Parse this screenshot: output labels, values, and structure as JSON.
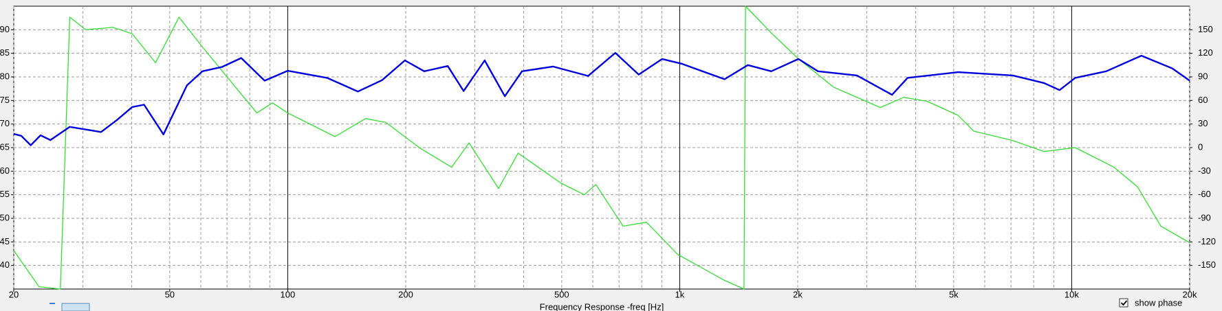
{
  "chart_data": {
    "type": "line",
    "x_label": "Frequency Response -freq [Hz]",
    "x_scale": "log",
    "xlim": [
      20,
      20000
    ],
    "xticks": [
      20,
      50,
      100,
      200,
      500,
      {
        "value": 1000,
        "label": "1k"
      },
      {
        "value": 2000,
        "label": "2k"
      },
      {
        "value": 5000,
        "label": "5k"
      },
      {
        "value": 10000,
        "label": "10k"
      },
      {
        "value": 20000,
        "label": "20k"
      }
    ],
    "x_minor_grid": [
      30,
      40,
      60,
      70,
      80,
      90,
      300,
      400,
      600,
      700,
      800,
      900,
      3000,
      4000,
      6000,
      7000,
      8000,
      9000
    ],
    "ylim": [
      35,
      95
    ],
    "yticks": [
      40,
      45,
      50,
      55,
      60,
      65,
      70,
      75,
      80,
      85,
      90
    ],
    "y2lim": [
      -180,
      180
    ],
    "y2ticks": [
      -150,
      -120,
      -90,
      -60,
      -30,
      0,
      30,
      60,
      90,
      120,
      150
    ],
    "grid": true,
    "series": [
      {
        "color": "#0000dd",
        "x": [
          20,
          20.9,
          22.1,
          23.4,
          24.8,
          27.8,
          33.4,
          36.6,
          40.1,
          43,
          48.2,
          55.3,
          60.6,
          67.9,
          76.1,
          87.3,
          100,
          126,
          151,
          174,
          199,
          223,
          256,
          281,
          318,
          358,
          396,
          475,
          584,
          685,
          786,
          902,
          1011,
          1301,
          1492,
          1712,
          2009,
          2253,
          2832,
          3481,
          3814,
          5135,
          7075,
          8497,
          9312,
          10210,
          12254,
          15061,
          18058,
          20000
        ],
        "values": [
          67.9,
          67.5,
          65.5,
          67.6,
          66.6,
          69.4,
          68.3,
          70.8,
          73.6,
          74.1,
          67.8,
          78.2,
          81.2,
          82.1,
          84,
          79.2,
          81.3,
          79.8,
          76.9,
          79.3,
          83.5,
          81.2,
          82.3,
          77,
          83.5,
          75.9,
          81.2,
          82.2,
          80.2,
          85.1,
          80.5,
          83.8,
          82.8,
          79.5,
          82.5,
          81.2,
          83.8,
          81.2,
          80.3,
          76.2,
          79.8,
          81,
          80.3,
          78.7,
          77.2,
          79.8,
          81.2,
          84.5,
          81.8,
          79.2
        ]
      },
      {
        "color": "#33dd33",
        "axis": "y2",
        "x": [
          20,
          23.2,
          26.3,
          27.8,
          30.5,
          35.8,
          40.1,
          46,
          52.8,
          60.6,
          83.4,
          91.4,
          100,
          132,
          158,
          178,
          218,
          262,
          290,
          345,
          387,
          497,
          571,
          611,
          717,
          823,
          988,
          1301,
          1459,
          1472,
          1712,
          2009,
          2469,
          3249,
          3728,
          4276,
          5135,
          5626,
          7075,
          8497,
          10210,
          12827,
          14727,
          16888,
          20000
        ],
        "values": [
          -131,
          -177,
          -180,
          166,
          150,
          153,
          145,
          108,
          166,
          128,
          44,
          57,
          44,
          14,
          37,
          32,
          -1,
          -25,
          6,
          -52,
          -7,
          -45,
          -60,
          -47,
          -100,
          -95,
          -136,
          -169,
          -180,
          180,
          146,
          113,
          77,
          51,
          64,
          59,
          41,
          21,
          9,
          -5,
          0,
          -25,
          -50,
          -100,
          -121
        ]
      }
    ]
  },
  "controls": {
    "show_phase": {
      "label": "show phase",
      "checked": true
    }
  }
}
